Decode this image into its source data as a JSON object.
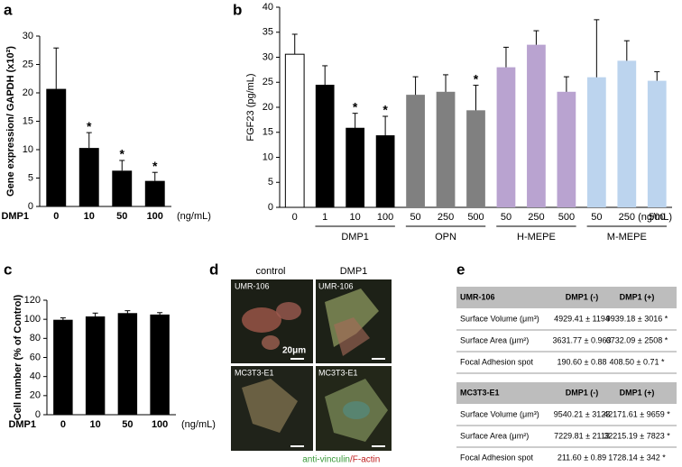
{
  "panel_labels": [
    "a",
    "b",
    "c",
    "d",
    "e"
  ],
  "chart_data": [
    {
      "type": "bar",
      "ylabel": "Gene expression/ GAPDH (x10²)",
      "x_prefix": "DMP1",
      "x_unit": "(ng/mL)",
      "categories": [
        "0",
        "10",
        "50",
        "100"
      ],
      "values": [
        20.7,
        10.3,
        6.3,
        4.5
      ],
      "errors": [
        7.2,
        2.7,
        1.8,
        1.5
      ],
      "error_style": "up",
      "markers": [
        null,
        "*",
        "*",
        "*"
      ],
      "color": "#000000",
      "ylim": [
        0,
        30
      ],
      "yticks": [
        0,
        5,
        10,
        15,
        20,
        25,
        30
      ]
    },
    {
      "type": "bar",
      "ylabel": "FGF23  (pg/mL)",
      "x_unit": "(ng/mL)",
      "categories": [
        "0",
        "1",
        "10",
        "100",
        "50",
        "250",
        "500",
        "50",
        "250",
        "500",
        "50",
        "250",
        "500"
      ],
      "values": [
        30.6,
        24.5,
        15.9,
        14.4,
        22.5,
        23.1,
        19.4,
        28.0,
        32.5,
        23.1,
        26.0,
        29.3,
        25.3
      ],
      "errors": [
        4.0,
        3.8,
        2.9,
        3.8,
        3.6,
        3.4,
        5.0,
        4.0,
        2.8,
        3.0,
        11.5,
        4.0,
        1.8
      ],
      "error_style": "both",
      "markers": [
        null,
        null,
        "*",
        "*",
        null,
        null,
        "*",
        null,
        null,
        null,
        null,
        null,
        null
      ],
      "colors": [
        "#ffffff",
        "#000000",
        "#000000",
        "#000000",
        "#808080",
        "#808080",
        "#808080",
        "#b9a3d0",
        "#b9a3d0",
        "#b9a3d0",
        "#bcd4ee",
        "#bcd4ee",
        "#bcd4ee"
      ],
      "groups": [
        {
          "name": "DMP1",
          "count": 3
        },
        {
          "name": "OPN",
          "count": 3
        },
        {
          "name": "H-MEPE",
          "count": 3
        },
        {
          "name": "M-MEPE",
          "count": 3
        }
      ],
      "ylim": [
        0,
        40
      ],
      "yticks": [
        0,
        5,
        10,
        15,
        20,
        25,
        30,
        35,
        40
      ]
    },
    {
      "type": "bar",
      "ylabel": "Cell number (% of Control)",
      "x_prefix": "DMP1",
      "x_unit": "(ng/mL)",
      "categories": [
        "0",
        "10",
        "50",
        "100"
      ],
      "values": [
        99.5,
        103,
        106.5,
        105
      ],
      "errors": [
        2,
        3.5,
        2.5,
        2
      ],
      "error_style": "both",
      "color": "#000000",
      "ylim": [
        0,
        120
      ],
      "yticks": [
        0,
        20,
        40,
        60,
        80,
        100,
        120
      ]
    }
  ],
  "micrographs": {
    "columns": [
      "control",
      "DMP1"
    ],
    "cells": [
      "UMR-106",
      "UMR-106",
      "MC3T3-E1",
      "MC3T3-E1"
    ],
    "scale": "20μm",
    "legend": [
      "anti-vinculin",
      "/F-actin"
    ]
  },
  "table": {
    "sections": [
      {
        "header": [
          "UMR-106",
          "DMP1 (-)",
          "DMP1 (+)"
        ],
        "rows": [
          [
            "Surface Volume (μm³)",
            "4929.41 ± 1194",
            "9939.18 ± 3016 *"
          ],
          [
            "Surface Area (μm²)",
            "3631.77 ± 0.963",
            "6732.09 ± 2508 *"
          ],
          [
            "Focal Adhesion spot",
            "190.60 ± 0.88",
            "408.50 ± 0.71 *"
          ]
        ]
      },
      {
        "header": [
          "MC3T3-E1",
          "DMP1 (-)",
          "DMP1 (+)"
        ],
        "rows": [
          [
            "Surface Volume (μm³)",
            "9540.21 ± 3123",
            "42171.61 ± 9659 *"
          ],
          [
            "Surface Area (μm²)",
            "7229.81 ± 2113",
            "32215.19 ± 7823 *"
          ],
          [
            "Focal Adhesion spot",
            "211.60 ± 0.89",
            "1728.14 ± 342 *"
          ]
        ]
      }
    ]
  }
}
